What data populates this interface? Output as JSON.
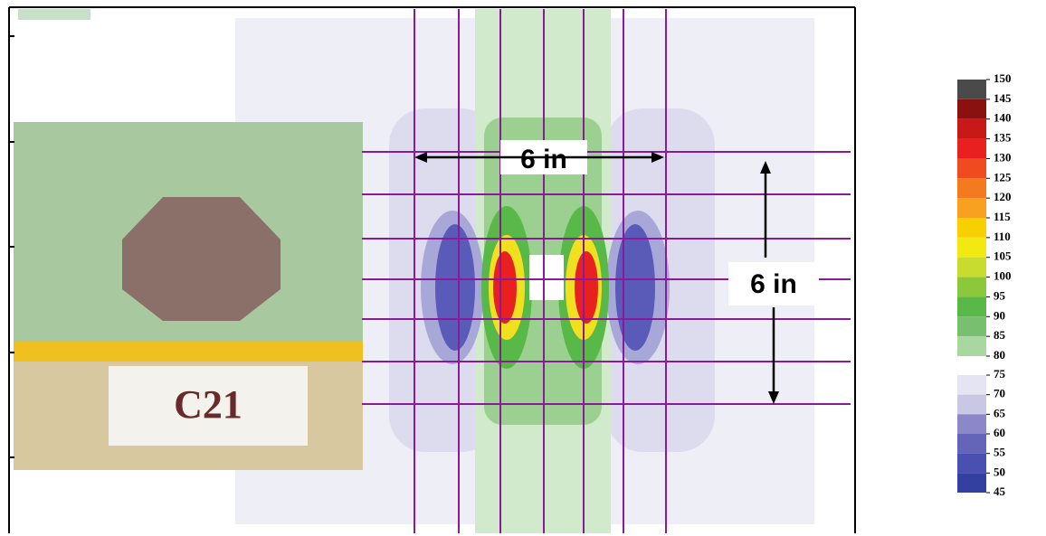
{
  "labels": {
    "horizontal_dimension": "6 in",
    "vertical_dimension": "6 in",
    "specimen": "C21"
  },
  "colorbar": {
    "upper": {
      "ticks": [
        150,
        145,
        140,
        135,
        130,
        125,
        120,
        115,
        110,
        105,
        100,
        95,
        90,
        85,
        80
      ],
      "colors": [
        "#4a4a4a",
        "#8b1010",
        "#c81818",
        "#e82020",
        "#f04a20",
        "#f47a20",
        "#f8a020",
        "#f8d000",
        "#f0ea10",
        "#c8dc30",
        "#8cc83c",
        "#58b848",
        "#78c070",
        "#a8d8a0"
      ]
    },
    "lower": {
      "ticks": [
        75,
        70,
        65,
        60,
        55,
        50,
        45
      ],
      "colors": [
        "#e4e4f2",
        "#c8c8e4",
        "#8c88c8",
        "#6464b8",
        "#4a50b0",
        "#3440a0"
      ]
    }
  }
}
